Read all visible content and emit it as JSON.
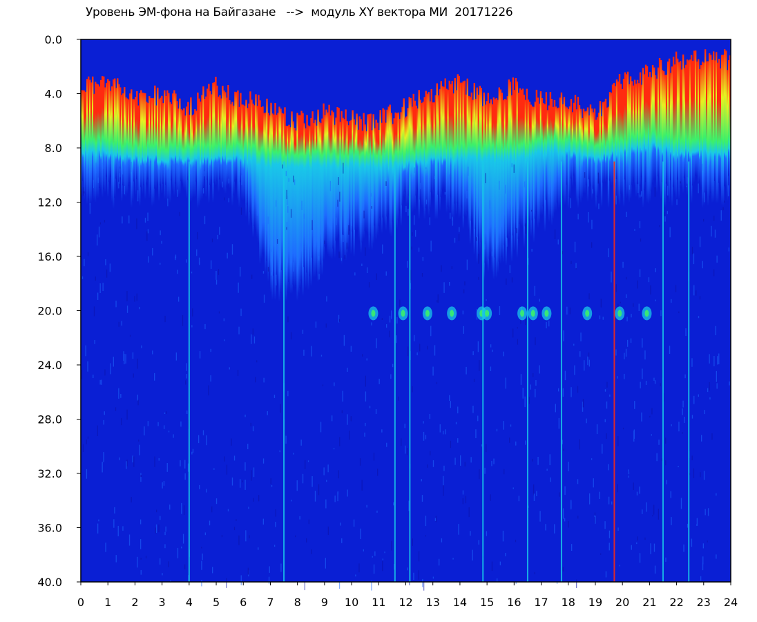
{
  "chart_data": {
    "type": "heatmap",
    "title": "Уровень ЭМ-фона на Байгазане   -->  модуль XY вектора МИ  20171226",
    "xlabel": "",
    "ylabel": "",
    "xlim": [
      0,
      24
    ],
    "ylim": [
      0,
      40
    ],
    "y_inverted": true,
    "x_ticks": [
      "0",
      "1",
      "2",
      "3",
      "4",
      "5",
      "6",
      "7",
      "8",
      "9",
      "10",
      "11",
      "12",
      "13",
      "14",
      "15",
      "16",
      "17",
      "18",
      "19",
      "20",
      "21",
      "22",
      "23",
      "24"
    ],
    "y_ticks": [
      "0.0",
      "4.0",
      "8.0",
      "12.0",
      "16.0",
      "20.0",
      "24.0",
      "28.0",
      "32.0",
      "36.0",
      "40.0"
    ],
    "colorscale": [
      "#0a1fd4",
      "#1e6bff",
      "#19c8e8",
      "#3cf06a",
      "#e8f020",
      "#ff2a10"
    ],
    "background_level_depth": 9.0,
    "hourly_upper_edge_depth": [
      3.5,
      3.0,
      4.5,
      4.0,
      5.0,
      3.5,
      4.5,
      5.0,
      6.0,
      5.5,
      6.0,
      6.0,
      5.0,
      4.0,
      3.0,
      4.5,
      3.5,
      4.5,
      4.5,
      5.5,
      3.0,
      2.5,
      1.5,
      1.5
    ],
    "hourly_green_band_depth": [
      8.0,
      8.0,
      8.5,
      8.5,
      8.5,
      8.5,
      8.5,
      9.0,
      9.0,
      9.0,
      9.0,
      9.0,
      9.0,
      8.5,
      8.5,
      8.5,
      8.5,
      8.0,
      8.0,
      8.5,
      8.0,
      7.5,
      8.0,
      8.0
    ],
    "hourly_penetration_depth": [
      9,
      9,
      9,
      9,
      9,
      9,
      9,
      16,
      16,
      14,
      13,
      12,
      10,
      10,
      10,
      15,
      13,
      11,
      9,
      9,
      9,
      9,
      9,
      9
    ],
    "line_at_20_spots_hours": [
      10.8,
      11.9,
      12.8,
      13.7,
      14.8,
      15.0,
      16.3,
      16.7,
      17.2,
      18.7,
      19.9,
      20.9
    ],
    "vertical_streaks_hours": [
      4.0,
      7.5,
      11.6,
      12.15,
      14.85,
      16.5,
      17.75,
      19.7,
      21.5,
      22.45
    ]
  }
}
